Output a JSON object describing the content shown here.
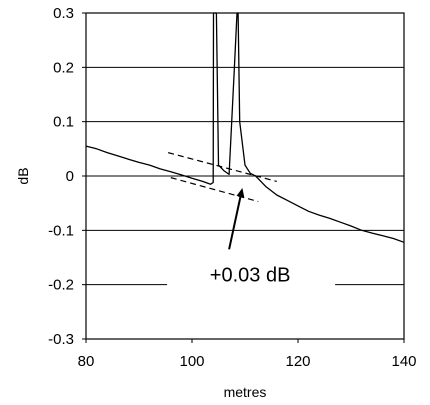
{
  "chart_data": {
    "type": "line",
    "title": "",
    "xlabel": "metres",
    "ylabel": "dB",
    "xlim": [
      80,
      140
    ],
    "ylim": [
      -0.3,
      0.3
    ],
    "x_ticks": [
      80,
      100,
      120,
      140
    ],
    "y_ticks": [
      0.3,
      0.2,
      0.1,
      0,
      -0.1,
      -0.2,
      -0.3
    ],
    "y_tick_labels": [
      "0.3",
      "0.2",
      "0.1",
      "0",
      "-0.1",
      "-0.2",
      "-0.3"
    ],
    "grid": "horizontal",
    "legend": "none",
    "series": [
      {
        "x": [
          80,
          82,
          84,
          86,
          88,
          90,
          92,
          94,
          96,
          98,
          100,
          102,
          103.5,
          104,
          104.05,
          104.6,
          105,
          106,
          107,
          108,
          108.5,
          108.7,
          109,
          110,
          111,
          112,
          113,
          114,
          116,
          118,
          120,
          122,
          124,
          126,
          128,
          130,
          132,
          134,
          136,
          138,
          140
        ],
        "y": [
          0.055,
          0.05,
          0.043,
          0.037,
          0.031,
          0.025,
          0.02,
          0.013,
          0.008,
          0.002,
          -0.004,
          -0.01,
          -0.015,
          -0.012,
          0.3,
          0.3,
          0.02,
          0.01,
          0.003,
          0.2,
          0.3,
          0.3,
          0.1,
          0.02,
          0.005,
          0.0,
          -0.01,
          -0.02,
          -0.035,
          -0.045,
          -0.055,
          -0.065,
          -0.072,
          -0.078,
          -0.085,
          -0.092,
          -0.1,
          -0.105,
          -0.11,
          -0.115,
          -0.122
        ],
        "color": "#000000"
      }
    ],
    "guides": [
      {
        "style": "dashed",
        "x": [
          95.5,
          116
        ],
        "y": [
          0.043,
          -0.01
        ]
      },
      {
        "style": "dashed",
        "x": [
          96,
          112.5
        ],
        "y": [
          -0.003,
          -0.047
        ]
      }
    ],
    "annotation": {
      "text": "+0.03 dB",
      "arrow_from": [
        107,
        -0.135
      ],
      "arrow_to": [
        109.5,
        -0.022
      ]
    }
  }
}
